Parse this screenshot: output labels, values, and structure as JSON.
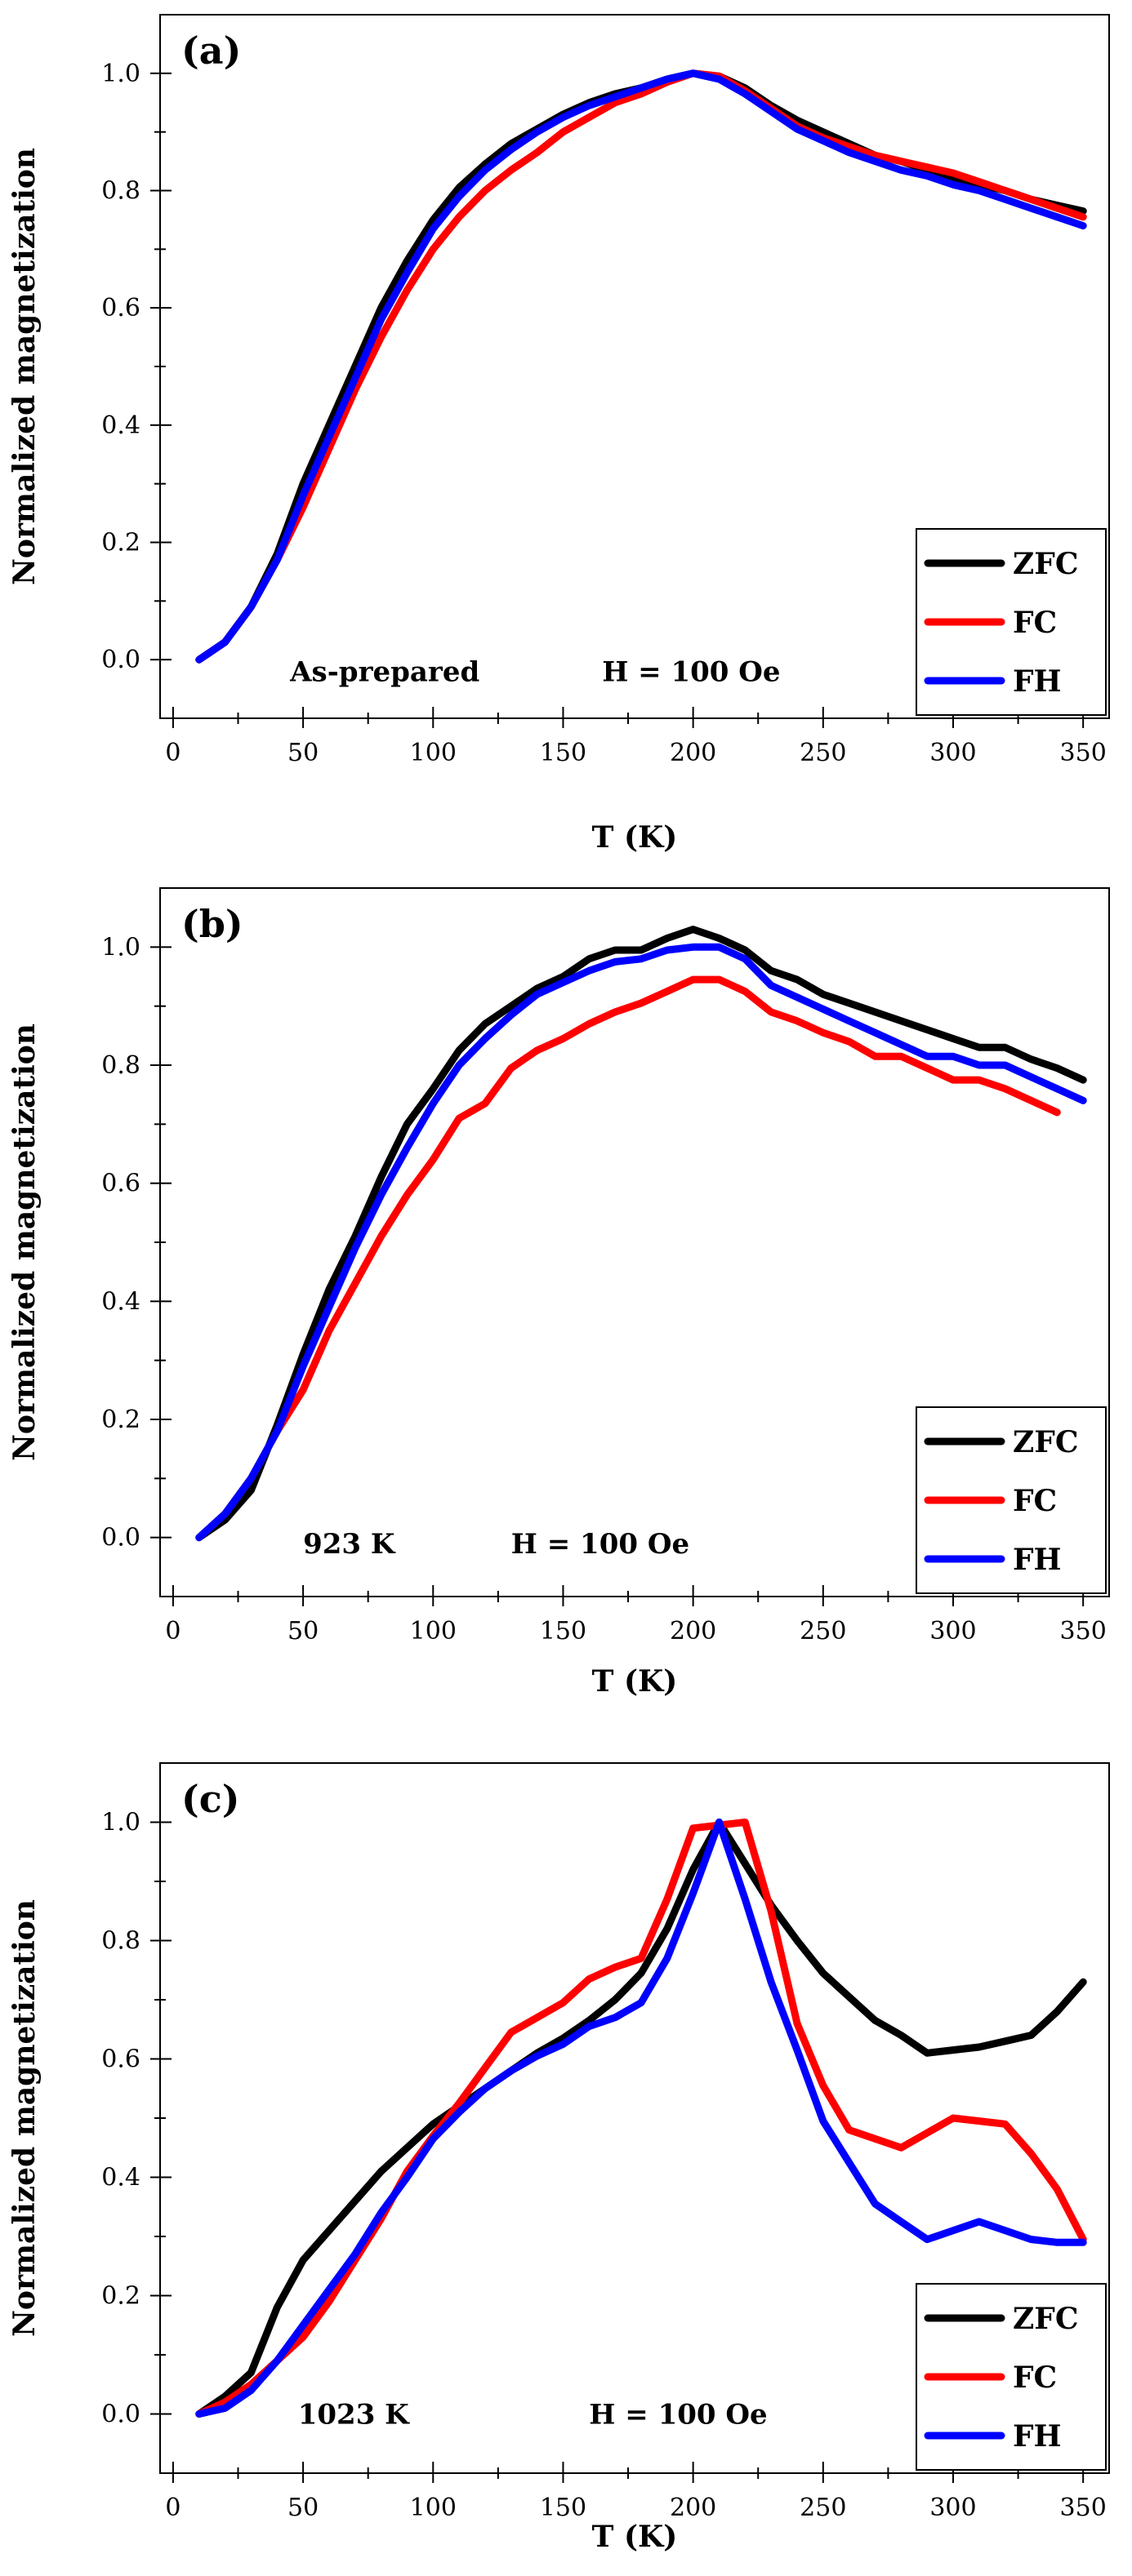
{
  "figure": {
    "title": ""
  },
  "chart_data": [
    {
      "type": "line",
      "panel_label": "(a)",
      "title": "",
      "xlabel": "T (K)",
      "ylabel": "Normalized magnetization",
      "xlim": [
        -5,
        360
      ],
      "ylim": [
        -0.1,
        1.1
      ],
      "x_ticks": [
        0,
        50,
        100,
        150,
        200,
        250,
        300,
        350
      ],
      "y_ticks": [
        0.0,
        0.2,
        0.4,
        0.6,
        0.8,
        1.0
      ],
      "y_tick_labels": [
        "0.0",
        "0.2",
        "0.4",
        "0.6",
        "0.8",
        "1.0"
      ],
      "annotations": [
        {
          "text": "As-prepared",
          "x": 45,
          "y": -0.02
        },
        {
          "text": "H = 100 Oe",
          "x": 165,
          "y": -0.02
        }
      ],
      "legend": {
        "placement": "bottom-right",
        "entries": [
          "ZFC",
          "FC",
          "FH"
        ]
      },
      "series": [
        {
          "name": "ZFC",
          "color": "#000000",
          "x": [
            10,
            20,
            30,
            40,
            50,
            60,
            70,
            80,
            90,
            100,
            110,
            120,
            130,
            140,
            150,
            160,
            170,
            180,
            190,
            200,
            210,
            220,
            230,
            240,
            250,
            260,
            270,
            280,
            290,
            300,
            310,
            320,
            330,
            340,
            350
          ],
          "y": [
            0.0,
            0.03,
            0.09,
            0.18,
            0.3,
            0.4,
            0.5,
            0.6,
            0.68,
            0.75,
            0.805,
            0.845,
            0.88,
            0.905,
            0.93,
            0.95,
            0.965,
            0.975,
            0.99,
            1.0,
            0.995,
            0.975,
            0.945,
            0.92,
            0.9,
            0.88,
            0.86,
            0.85,
            0.835,
            0.82,
            0.81,
            0.8,
            0.785,
            0.775,
            0.765
          ]
        },
        {
          "name": "FC",
          "color": "#ff0000",
          "x": [
            10,
            20,
            30,
            40,
            50,
            60,
            70,
            80,
            90,
            100,
            110,
            120,
            130,
            140,
            150,
            160,
            170,
            180,
            190,
            200,
            210,
            220,
            230,
            240,
            250,
            260,
            270,
            280,
            290,
            300,
            310,
            320,
            330,
            340,
            350
          ],
          "y": [
            0.0,
            0.03,
            0.09,
            0.17,
            0.26,
            0.36,
            0.46,
            0.55,
            0.63,
            0.7,
            0.755,
            0.8,
            0.835,
            0.865,
            0.9,
            0.925,
            0.95,
            0.965,
            0.985,
            1.0,
            0.995,
            0.97,
            0.94,
            0.91,
            0.89,
            0.875,
            0.86,
            0.85,
            0.84,
            0.83,
            0.815,
            0.8,
            0.785,
            0.77,
            0.755
          ]
        },
        {
          "name": "FH",
          "color": "#0000ff",
          "x": [
            10,
            20,
            30,
            40,
            50,
            60,
            70,
            80,
            90,
            100,
            110,
            120,
            130,
            140,
            150,
            160,
            170,
            180,
            190,
            200,
            210,
            220,
            230,
            240,
            250,
            260,
            270,
            280,
            290,
            300,
            310,
            320,
            330,
            340,
            350
          ],
          "y": [
            0.0,
            0.03,
            0.09,
            0.17,
            0.28,
            0.38,
            0.48,
            0.58,
            0.66,
            0.735,
            0.79,
            0.835,
            0.87,
            0.9,
            0.925,
            0.945,
            0.96,
            0.975,
            0.99,
            1.0,
            0.99,
            0.965,
            0.935,
            0.905,
            0.885,
            0.865,
            0.85,
            0.835,
            0.825,
            0.81,
            0.8,
            0.785,
            0.77,
            0.755,
            0.74
          ]
        }
      ]
    },
    {
      "type": "line",
      "panel_label": "(b)",
      "title": "",
      "xlabel": "T (K)",
      "ylabel": "Normalized magnetization",
      "xlim": [
        -5,
        360
      ],
      "ylim": [
        -0.1,
        1.1
      ],
      "x_ticks": [
        0,
        50,
        100,
        150,
        200,
        250,
        300,
        350
      ],
      "y_ticks": [
        0.0,
        0.2,
        0.4,
        0.6,
        0.8,
        1.0
      ],
      "y_tick_labels": [
        "0.0",
        "0.2",
        "0.4",
        "0.6",
        "0.8",
        "1.0"
      ],
      "annotations": [
        {
          "text": "923 K",
          "x": 50,
          "y": -0.01
        },
        {
          "text": "H = 100 Oe",
          "x": 130,
          "y": -0.01
        }
      ],
      "legend": {
        "placement": "bottom-right",
        "entries": [
          "ZFC",
          "FC",
          "FH"
        ]
      },
      "series": [
        {
          "name": "ZFC",
          "color": "#000000",
          "x": [
            10,
            20,
            30,
            40,
            50,
            60,
            70,
            80,
            90,
            100,
            110,
            120,
            130,
            140,
            150,
            160,
            170,
            180,
            190,
            200,
            210,
            220,
            230,
            240,
            250,
            260,
            270,
            280,
            290,
            300,
            310,
            320,
            330,
            340,
            350
          ],
          "y": [
            0.0,
            0.03,
            0.08,
            0.19,
            0.31,
            0.42,
            0.51,
            0.61,
            0.7,
            0.76,
            0.825,
            0.87,
            0.9,
            0.93,
            0.95,
            0.98,
            0.995,
            0.995,
            1.015,
            1.03,
            1.015,
            0.995,
            0.96,
            0.945,
            0.92,
            0.905,
            0.89,
            0.875,
            0.86,
            0.845,
            0.83,
            0.83,
            0.81,
            0.795,
            0.775
          ]
        },
        {
          "name": "FC",
          "color": "#ff0000",
          "x": [
            10,
            20,
            30,
            40,
            50,
            60,
            70,
            80,
            90,
            100,
            110,
            120,
            130,
            140,
            150,
            160,
            170,
            180,
            190,
            200,
            210,
            220,
            230,
            240,
            250,
            260,
            270,
            280,
            290,
            300,
            310,
            320,
            330,
            340
          ],
          "y": [
            0.0,
            0.04,
            0.1,
            0.18,
            0.25,
            0.35,
            0.43,
            0.51,
            0.58,
            0.64,
            0.71,
            0.735,
            0.795,
            0.825,
            0.845,
            0.87,
            0.89,
            0.905,
            0.925,
            0.945,
            0.945,
            0.925,
            0.89,
            0.875,
            0.855,
            0.84,
            0.815,
            0.815,
            0.795,
            0.775,
            0.775,
            0.76,
            0.74,
            0.72
          ]
        },
        {
          "name": "FH",
          "color": "#0000ff",
          "x": [
            10,
            20,
            30,
            40,
            50,
            60,
            70,
            80,
            90,
            100,
            110,
            120,
            130,
            140,
            150,
            160,
            170,
            180,
            190,
            200,
            210,
            220,
            230,
            240,
            250,
            260,
            270,
            280,
            290,
            300,
            310,
            320,
            330,
            340,
            350
          ],
          "y": [
            0.0,
            0.04,
            0.1,
            0.18,
            0.29,
            0.39,
            0.49,
            0.58,
            0.66,
            0.735,
            0.8,
            0.845,
            0.885,
            0.92,
            0.94,
            0.96,
            0.975,
            0.98,
            0.995,
            1.0,
            1.0,
            0.98,
            0.935,
            0.915,
            0.895,
            0.875,
            0.855,
            0.835,
            0.815,
            0.815,
            0.8,
            0.8,
            0.78,
            0.76,
            0.74
          ]
        }
      ]
    },
    {
      "type": "line",
      "panel_label": "(c)",
      "title": "",
      "xlabel": "T (K)",
      "ylabel": "Normalized magnetization",
      "xlim": [
        -5,
        360
      ],
      "ylim": [
        -0.1,
        1.1
      ],
      "x_ticks": [
        0,
        50,
        100,
        150,
        200,
        250,
        300,
        350
      ],
      "y_ticks": [
        0.0,
        0.2,
        0.4,
        0.6,
        0.8,
        1.0
      ],
      "y_tick_labels": [
        "0.0",
        "0.2",
        "0.4",
        "0.6",
        "0.8",
        "1.0"
      ],
      "annotations": [
        {
          "text": "1023 K",
          "x": 48,
          "y": 0.0
        },
        {
          "text": "H = 100 Oe",
          "x": 160,
          "y": 0.0
        }
      ],
      "legend": {
        "placement": "bottom-right",
        "entries": [
          "ZFC",
          "FC",
          "FH"
        ]
      },
      "series": [
        {
          "name": "ZFC",
          "color": "#000000",
          "x": [
            10,
            20,
            30,
            40,
            50,
            60,
            70,
            80,
            90,
            100,
            110,
            120,
            130,
            140,
            150,
            160,
            170,
            180,
            190,
            200,
            210,
            220,
            230,
            240,
            250,
            260,
            270,
            280,
            290,
            300,
            310,
            320,
            330,
            340,
            350
          ],
          "y": [
            0.0,
            0.03,
            0.07,
            0.18,
            0.26,
            0.31,
            0.36,
            0.41,
            0.45,
            0.49,
            0.52,
            0.55,
            0.58,
            0.61,
            0.635,
            0.665,
            0.7,
            0.745,
            0.82,
            0.92,
            1.0,
            0.93,
            0.86,
            0.8,
            0.745,
            0.705,
            0.665,
            0.64,
            0.61,
            0.615,
            0.62,
            0.63,
            0.64,
            0.68,
            0.73
          ]
        },
        {
          "name": "FC",
          "color": "#ff0000",
          "x": [
            10,
            20,
            30,
            40,
            50,
            60,
            70,
            80,
            90,
            100,
            110,
            120,
            130,
            140,
            150,
            160,
            170,
            180,
            190,
            200,
            210,
            220,
            230,
            240,
            250,
            260,
            270,
            280,
            290,
            300,
            310,
            320,
            330,
            340,
            350
          ],
          "y": [
            0.0,
            0.02,
            0.05,
            0.09,
            0.13,
            0.19,
            0.26,
            0.33,
            0.41,
            0.47,
            0.525,
            0.585,
            0.645,
            0.67,
            0.695,
            0.735,
            0.755,
            0.77,
            0.87,
            0.99,
            0.995,
            1.0,
            0.85,
            0.66,
            0.555,
            0.48,
            0.465,
            0.45,
            0.475,
            0.5,
            0.495,
            0.49,
            0.44,
            0.38,
            0.295
          ]
        },
        {
          "name": "FH",
          "color": "#0000ff",
          "x": [
            10,
            20,
            30,
            40,
            50,
            60,
            70,
            80,
            90,
            100,
            110,
            120,
            130,
            140,
            150,
            160,
            170,
            180,
            190,
            200,
            210,
            220,
            230,
            240,
            250,
            260,
            270,
            280,
            290,
            300,
            310,
            320,
            330,
            340,
            350
          ],
          "y": [
            0.0,
            0.01,
            0.04,
            0.09,
            0.15,
            0.21,
            0.27,
            0.34,
            0.4,
            0.465,
            0.51,
            0.55,
            0.58,
            0.605,
            0.625,
            0.655,
            0.67,
            0.695,
            0.77,
            0.88,
            1.0,
            0.87,
            0.73,
            0.615,
            0.495,
            0.425,
            0.355,
            0.325,
            0.295,
            0.31,
            0.325,
            0.31,
            0.295,
            0.29,
            0.29
          ]
        }
      ]
    }
  ]
}
